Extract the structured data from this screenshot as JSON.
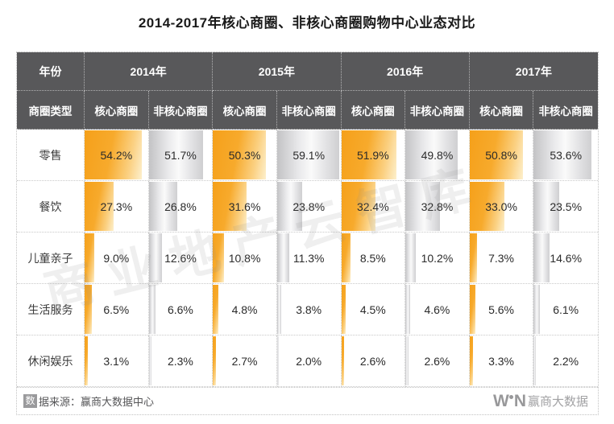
{
  "title": "2014-2017年核心商圈、非核心商圈购物中心业态对比",
  "table": {
    "year_col_header": "年份",
    "type_col_header": "商圈类型",
    "years": [
      "2014年",
      "2015年",
      "2016年",
      "2017年"
    ],
    "subheaders": [
      "核心商圈",
      "非核心商圈"
    ],
    "rows": [
      {
        "label": "零售",
        "values": [
          "54.2%",
          "51.7%",
          "50.3%",
          "59.1%",
          "51.9%",
          "49.8%",
          "50.8%",
          "53.6%"
        ]
      },
      {
        "label": "餐饮",
        "values": [
          "27.3%",
          "26.8%",
          "31.6%",
          "23.8%",
          "32.4%",
          "32.8%",
          "33.0%",
          "23.5%"
        ]
      },
      {
        "label": "儿童亲子",
        "values": [
          "9.0%",
          "12.6%",
          "10.8%",
          "11.3%",
          "8.5%",
          "10.2%",
          "7.3%",
          "14.6%"
        ]
      },
      {
        "label": "生活服务",
        "values": [
          "6.5%",
          "6.6%",
          "4.8%",
          "3.8%",
          "4.5%",
          "4.6%",
          "5.6%",
          "6.1%"
        ]
      },
      {
        "label": "休闲娱乐",
        "values": [
          "3.1%",
          "2.3%",
          "2.7%",
          "2.0%",
          "2.6%",
          "2.6%",
          "3.3%",
          "2.2%"
        ]
      }
    ]
  },
  "chart_data": {
    "type": "table",
    "title": "2014-2017年核心商圈、非核心商圈购物中心业态对比",
    "column_groups": [
      "2014年",
      "2015年",
      "2016年",
      "2017年"
    ],
    "subcolumns": [
      "核心商圈",
      "非核心商圈"
    ],
    "row_header": "商圈类型",
    "unit": "%",
    "rows": [
      {
        "category": "零售",
        "values": [
          54.2,
          51.7,
          50.3,
          59.1,
          51.9,
          49.8,
          50.8,
          53.6
        ]
      },
      {
        "category": "餐饮",
        "values": [
          27.3,
          26.8,
          31.6,
          23.8,
          32.4,
          32.8,
          33.0,
          23.5
        ]
      },
      {
        "category": "儿童亲子",
        "values": [
          9.0,
          12.6,
          10.8,
          11.3,
          8.5,
          10.2,
          7.3,
          14.6
        ]
      },
      {
        "category": "生活服务",
        "values": [
          6.5,
          6.6,
          4.8,
          3.8,
          4.5,
          4.6,
          5.6,
          6.1
        ]
      },
      {
        "category": "休闲娱乐",
        "values": [
          3.1,
          2.3,
          2.7,
          2.0,
          2.6,
          2.6,
          3.3,
          2.2
        ]
      }
    ],
    "bar_scale_max": 60,
    "core_bar_color": "#f5a01a",
    "noncore_bar_color": "#c3c3c5",
    "header_bg_color": "#58585a"
  },
  "watermark": "商业地产云智库",
  "footer": {
    "source_badge": "数",
    "source_text": "据来源：赢商大数据中心",
    "logo_w": "W",
    "logo_n": "N",
    "brand_text": "赢商大数据"
  }
}
